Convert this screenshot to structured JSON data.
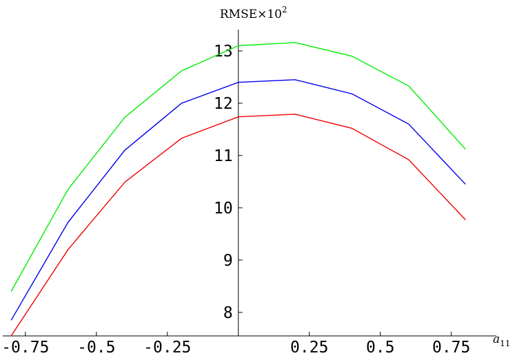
{
  "chart_data": {
    "type": "line",
    "title": "RMSE×10",
    "title_superscript": "2",
    "xlabel": "a",
    "xlabel_subscript": "11",
    "ylabel": "",
    "x": [
      -0.8,
      -0.6,
      -0.4,
      -0.2,
      0.0,
      0.2,
      0.4,
      0.6,
      0.8
    ],
    "xlim": [
      -0.82,
      0.86
    ],
    "ylim": [
      7.55,
      13.25
    ],
    "x_ticks": [
      -0.75,
      -0.5,
      -0.25,
      0.25,
      0.5,
      0.75
    ],
    "x_tick_labels": [
      "-0.75",
      "-0.5",
      "-0.25",
      "0.25",
      "0.5",
      "0.75"
    ],
    "y_ticks": [
      8,
      9,
      10,
      11,
      12,
      13
    ],
    "y_tick_labels": [
      "8",
      "9",
      "10",
      "11",
      "12",
      "13"
    ],
    "grid": false,
    "series": [
      {
        "color": "#00ee00",
        "values": [
          8.4,
          10.35,
          11.73,
          12.62,
          13.1,
          13.16,
          12.9,
          12.33,
          11.12
        ]
      },
      {
        "color": "#0000ee",
        "values": [
          7.85,
          9.72,
          11.1,
          12.0,
          12.4,
          12.45,
          12.18,
          11.6,
          10.45
        ]
      },
      {
        "color": "#ee0000",
        "values": [
          7.55,
          9.2,
          10.49,
          11.33,
          11.74,
          11.79,
          11.52,
          10.92,
          9.77
        ]
      }
    ]
  }
}
